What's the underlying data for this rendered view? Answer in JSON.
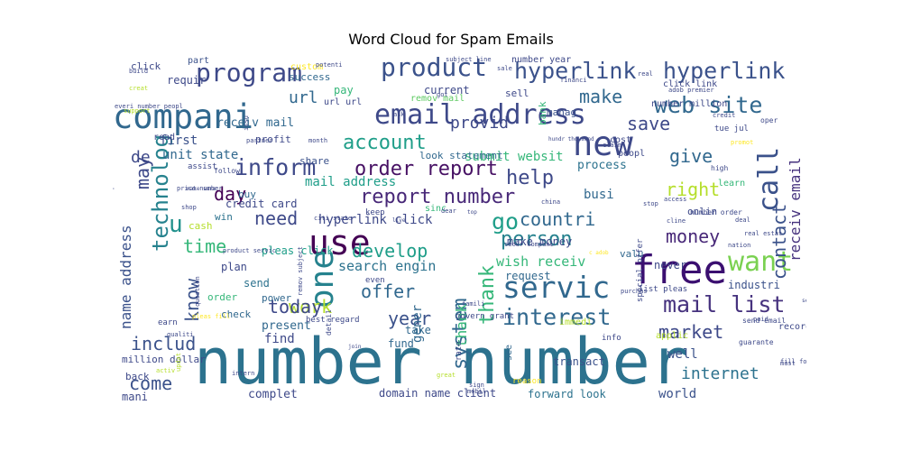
{
  "chart_data": {
    "type": "wordcloud",
    "title": "Word Cloud for Spam Emails",
    "words": [
      {
        "text": "number number",
        "weight": 70,
        "color": "#2c728e"
      },
      {
        "text": "free",
        "weight": 44,
        "color": "#3b0f70"
      },
      {
        "text": "use",
        "weight": 38,
        "color": "#440154"
      },
      {
        "text": "compani",
        "weight": 37,
        "color": "#31688e"
      },
      {
        "text": "new",
        "weight": 37,
        "color": "#3e4989"
      },
      {
        "text": "one",
        "weight": 36,
        "color": "#26828e"
      },
      {
        "text": "servic",
        "weight": 33,
        "color": "#31688e"
      },
      {
        "text": "email address",
        "weight": 30,
        "color": "#3e4989"
      },
      {
        "text": "want",
        "weight": 30,
        "color": "#7ad151"
      },
      {
        "text": "program",
        "weight": 28,
        "color": "#3e4989"
      },
      {
        "text": "product",
        "weight": 28,
        "color": "#3b528b"
      },
      {
        "text": "call",
        "weight": 30,
        "color": "#3b528b"
      },
      {
        "text": "hyperlink",
        "weight": 25,
        "color": "#3b528b"
      },
      {
        "text": "hyperlink",
        "weight": 25,
        "color": "#3b528b"
      },
      {
        "text": "web site",
        "weight": 25,
        "color": "#31688e"
      },
      {
        "text": "mail list",
        "weight": 25,
        "color": "#46327e"
      },
      {
        "text": "interest",
        "weight": 25,
        "color": "#31688e"
      },
      {
        "text": "inform",
        "weight": 25,
        "color": "#3e4989"
      },
      {
        "text": "technolog",
        "weight": 24,
        "color": "#26828e"
      },
      {
        "text": "go",
        "weight": 25,
        "color": "#1f9e89"
      },
      {
        "text": "u",
        "weight": 26,
        "color": "#21918c"
      },
      {
        "text": "account",
        "weight": 22,
        "color": "#1f9e89"
      },
      {
        "text": "report number",
        "weight": 22,
        "color": "#482878"
      },
      {
        "text": "order report",
        "weight": 22,
        "color": "#471164"
      },
      {
        "text": "help",
        "weight": 22,
        "color": "#3e4989"
      },
      {
        "text": "person",
        "weight": 22,
        "color": "#26828e"
      },
      {
        "text": "market",
        "weight": 20,
        "color": "#3e4989"
      },
      {
        "text": "system",
        "weight": 22,
        "color": "#31688e"
      },
      {
        "text": "thank",
        "weight": 22,
        "color": "#35b779"
      },
      {
        "text": "contact",
        "weight": 20,
        "color": "#3b528b"
      },
      {
        "text": "right",
        "weight": 20,
        "color": "#b5de2b"
      },
      {
        "text": "give",
        "weight": 20,
        "color": "#31688e"
      },
      {
        "text": "save",
        "weight": 20,
        "color": "#3e4989"
      },
      {
        "text": "make",
        "weight": 20,
        "color": "#31688e"
      },
      {
        "text": "money",
        "weight": 20,
        "color": "#482878"
      },
      {
        "text": "countri",
        "weight": 20,
        "color": "#31688e"
      },
      {
        "text": "develop",
        "weight": 20,
        "color": "#1f9e89"
      },
      {
        "text": "offer",
        "weight": 20,
        "color": "#31688e"
      },
      {
        "text": "work",
        "weight": 20,
        "color": "#b5de2b"
      },
      {
        "text": "today",
        "weight": 20,
        "color": "#3e4989"
      },
      {
        "text": "year",
        "weight": 20,
        "color": "#3b528b"
      },
      {
        "text": "includ",
        "weight": 20,
        "color": "#3b528b"
      },
      {
        "text": "internet",
        "weight": 18,
        "color": "#2c728e"
      },
      {
        "text": "time",
        "weight": 20,
        "color": "#35b779"
      },
      {
        "text": "need",
        "weight": 20,
        "color": "#3e4989"
      },
      {
        "text": "day",
        "weight": 20,
        "color": "#440154"
      },
      {
        "text": "may",
        "weight": 20,
        "color": "#3e4989"
      },
      {
        "text": "know",
        "weight": 20,
        "color": "#3b528b"
      },
      {
        "text": "name address",
        "weight": 16,
        "color": "#3b528b"
      },
      {
        "text": "come",
        "weight": 20,
        "color": "#3b528b"
      },
      {
        "text": "url",
        "weight": 18,
        "color": "#31688e"
      },
      {
        "text": "de",
        "weight": 18,
        "color": "#3e4989"
      },
      {
        "text": "provid",
        "weight": 18,
        "color": "#3e4989"
      },
      {
        "text": "receiv email",
        "weight": 16,
        "color": "#46327e"
      },
      {
        "text": "thank",
        "weight": 16,
        "color": "#35b779"
      },
      {
        "text": "gener",
        "weight": 14,
        "color": "#31688e"
      },
      {
        "text": "search engin",
        "weight": 15,
        "color": "#2c728e"
      },
      {
        "text": "wish receiv",
        "weight": 15,
        "color": "#35b779"
      },
      {
        "text": "hyperlink click",
        "weight": 14,
        "color": "#3e4989"
      },
      {
        "text": "mail address",
        "weight": 14,
        "color": "#1f9e89"
      },
      {
        "text": "receiv mail",
        "weight": 13,
        "color": "#31688e"
      },
      {
        "text": "submit websit",
        "weight": 14,
        "color": "#35b779"
      },
      {
        "text": "unit state",
        "weight": 14,
        "color": "#31688e"
      },
      {
        "text": "first",
        "weight": 14,
        "color": "#3b528b"
      },
      {
        "text": "busi",
        "weight": 14,
        "color": "#31688e"
      },
      {
        "text": "process",
        "weight": 13,
        "color": "#2c728e"
      },
      {
        "text": "present",
        "weight": 13,
        "color": "#31688e"
      },
      {
        "text": "well",
        "weight": 14,
        "color": "#3b528b"
      },
      {
        "text": "world",
        "weight": 14,
        "color": "#3b528b"
      },
      {
        "text": "complet",
        "weight": 13,
        "color": "#3e4989"
      },
      {
        "text": "forward look",
        "weight": 12,
        "color": "#2c728e"
      },
      {
        "text": "domain name client",
        "weight": 12,
        "color": "#3e4989"
      },
      {
        "text": "mani",
        "weight": 12,
        "color": "#3e4989"
      },
      {
        "text": "million dollar",
        "weight": 11,
        "color": "#3e4989"
      },
      {
        "text": "find",
        "weight": 14,
        "color": "#3e4989"
      },
      {
        "text": "transact",
        "weight": 12,
        "color": "#3b528b"
      },
      {
        "text": "fund",
        "weight": 12,
        "color": "#31688e"
      },
      {
        "text": "take",
        "weight": 12,
        "color": "#31688e"
      },
      {
        "text": "request",
        "weight": 12,
        "color": "#31688e"
      },
      {
        "text": "industri",
        "weight": 12,
        "color": "#3b528b"
      },
      {
        "text": "never",
        "weight": 12,
        "color": "#3e4989"
      },
      {
        "text": "valu",
        "weight": 11,
        "color": "#31688e"
      },
      {
        "text": "make money",
        "weight": 12,
        "color": "#3e4989"
      },
      {
        "text": "plan",
        "weight": 12,
        "color": "#3e4989"
      },
      {
        "text": "credit card",
        "weight": 12,
        "color": "#3e4989"
      },
      {
        "text": "pleas click",
        "weight": 12,
        "color": "#1f9e89"
      },
      {
        "text": "send",
        "weight": 12,
        "color": "#2c728e"
      },
      {
        "text": "order",
        "weight": 11,
        "color": "#35b779"
      },
      {
        "text": "check",
        "weight": 11,
        "color": "#31688e"
      },
      {
        "text": "power",
        "weight": 11,
        "color": "#31688e"
      },
      {
        "text": "win",
        "weight": 11,
        "color": "#2c728e"
      },
      {
        "text": "cash",
        "weight": 11,
        "color": "#b5de2b"
      },
      {
        "text": "buy",
        "weight": 11,
        "color": "#31688e"
      },
      {
        "text": "share",
        "weight": 11,
        "color": "#3b528b"
      },
      {
        "text": "look statement",
        "weight": 11,
        "color": "#31688e"
      },
      {
        "text": "profit",
        "weight": 11,
        "color": "#3e4989"
      },
      {
        "text": "pay",
        "weight": 12,
        "color": "#35b779"
      },
      {
        "text": "current",
        "weight": 12,
        "color": "#3e4989"
      },
      {
        "text": "sell",
        "weight": 11,
        "color": "#3e4989"
      },
      {
        "text": "custom",
        "weight": 10,
        "color": "#fde725"
      },
      {
        "text": "success",
        "weight": 11,
        "color": "#31688e"
      },
      {
        "text": "click",
        "weight": 11,
        "color": "#3e4989"
      },
      {
        "text": "requir",
        "weight": 12,
        "color": "#3e4989"
      },
      {
        "text": "part",
        "weight": 10,
        "color": "#3b528b"
      },
      {
        "text": "remov mail",
        "weight": 10,
        "color": "#5ec962"
      },
      {
        "text": "manag",
        "weight": 11,
        "color": "#3b528b"
      },
      {
        "text": "url url",
        "weight": 10,
        "color": "#3e4989"
      },
      {
        "text": "tue jul",
        "weight": 9,
        "color": "#3e4989"
      },
      {
        "text": "cost",
        "weight": 10,
        "color": "#3e4989"
      },
      {
        "text": "peopl",
        "weight": 10,
        "color": "#3e4989"
      },
      {
        "text": "learn",
        "weight": 10,
        "color": "#35b779"
      },
      {
        "text": "onlin",
        "weight": 11,
        "color": "#3e4989"
      },
      {
        "text": "bank",
        "weight": 11,
        "color": "#35b779"
      },
      {
        "text": "number year",
        "weight": 10,
        "color": "#3e4989"
      },
      {
        "text": "click link",
        "weight": 10,
        "color": "#3e4989"
      },
      {
        "text": "number million",
        "weight": 10,
        "color": "#3e4989"
      },
      {
        "text": "keep",
        "weight": 9,
        "color": "#3e4989"
      },
      {
        "text": "sinc",
        "weight": 10,
        "color": "#35b779"
      },
      {
        "text": "assist",
        "weight": 9,
        "color": "#3e4989"
      },
      {
        "text": "read",
        "weight": 10,
        "color": "#3e4989"
      },
      {
        "text": "info",
        "weight": 9,
        "color": "#3e4989"
      },
      {
        "text": "applic",
        "weight": 10,
        "color": "#b5de2b"
      },
      {
        "text": "record",
        "weight": 10,
        "color": "#3e4989"
      },
      {
        "text": "immedi",
        "weight": 10,
        "color": "#b5de2b"
      },
      {
        "text": "special offer",
        "weight": 9,
        "color": "#3e4989"
      },
      {
        "text": "list pleas",
        "weight": 9,
        "color": "#3e4989"
      },
      {
        "text": "reason",
        "weight": 9,
        "color": "#fde725"
      },
      {
        "text": "see",
        "weight": 10,
        "color": "#31688e"
      },
      {
        "text": "rate",
        "weight": 9,
        "color": "#3e4989"
      },
      {
        "text": "govern grant",
        "weight": 9,
        "color": "#3e4989"
      },
      {
        "text": "even",
        "weight": 9,
        "color": "#3e4989"
      },
      {
        "text": "back",
        "weight": 11,
        "color": "#3e4989"
      },
      {
        "text": "earn",
        "weight": 9,
        "color": "#3e4989"
      },
      {
        "text": "best regard",
        "weight": 9,
        "color": "#3e4989"
      },
      {
        "text": "detail",
        "weight": 8,
        "color": "#3e4989"
      },
      {
        "text": "send email",
        "weight": 8,
        "color": "#3e4989"
      },
      {
        "text": "paid",
        "weight": 7,
        "color": "#3e4989"
      },
      {
        "text": "guarante",
        "weight": 8,
        "color": "#3e4989"
      },
      {
        "text": "must",
        "weight": 7,
        "color": "#3e4989"
      },
      {
        "text": "fill form",
        "weight": 7,
        "color": "#3e4989"
      },
      {
        "text": "great",
        "weight": 7,
        "color": "#b5de2b"
      },
      {
        "text": "mobil",
        "weight": 7,
        "color": "#3e4989"
      },
      {
        "text": "sign",
        "weight": 7,
        "color": "#3e4989"
      },
      {
        "text": "activ",
        "weight": 7,
        "color": "#b5de2b"
      },
      {
        "text": "intern",
        "weight": 7,
        "color": "#3e4989"
      },
      {
        "text": "remov subject",
        "weight": 7,
        "color": "#3e4989"
      },
      {
        "text": "updat",
        "weight": 7,
        "color": "#b5de2b"
      },
      {
        "text": "question",
        "weight": 7,
        "color": "#3e4989"
      },
      {
        "text": "product servic",
        "weight": 7,
        "color": "#3e4989"
      },
      {
        "text": "price number",
        "weight": 7,
        "color": "#3e4989"
      },
      {
        "text": "public",
        "weight": 7,
        "color": "#3e4989"
      },
      {
        "text": "make sure",
        "weight": 6,
        "color": "#3e4989"
      },
      {
        "text": "follow",
        "weight": 8,
        "color": "#3e4989"
      },
      {
        "text": "month",
        "weight": 7,
        "color": "#3e4989"
      },
      {
        "text": "partner",
        "weight": 7,
        "color": "#3e4989"
      },
      {
        "text": "issu",
        "weight": 7,
        "color": "#3e4989"
      },
      {
        "text": "ask",
        "weight": 7,
        "color": "#3e4989"
      },
      {
        "text": "support",
        "weight": 7,
        "color": "#b5de2b"
      },
      {
        "text": "everi number peopl",
        "weight": 7,
        "color": "#3e4989"
      },
      {
        "text": "creat",
        "weight": 7,
        "color": "#b5de2b"
      },
      {
        "text": "build",
        "weight": 7,
        "color": "#3e4989"
      },
      {
        "text": "potenti",
        "weight": 7,
        "color": "#3e4989"
      },
      {
        "text": "subject line",
        "weight": 7,
        "color": "#3e4989"
      },
      {
        "text": "got",
        "weight": 7,
        "color": "#3e4989"
      },
      {
        "text": "sale",
        "weight": 7,
        "color": "#3e4989"
      },
      {
        "text": "financi",
        "weight": 7,
        "color": "#3e4989"
      },
      {
        "text": "real",
        "weight": 7,
        "color": "#3e4989"
      },
      {
        "text": "adob premier",
        "weight": 7,
        "color": "#3e4989"
      },
      {
        "text": "credit",
        "weight": 7,
        "color": "#3e4989"
      },
      {
        "text": "oper",
        "weight": 8,
        "color": "#3e4989"
      },
      {
        "text": "promot",
        "weight": 7,
        "color": "#fde725"
      },
      {
        "text": "high",
        "weight": 8,
        "color": "#3e4989"
      },
      {
        "text": "claim",
        "weight": 7,
        "color": "#3e4989"
      },
      {
        "text": "hundr thousand",
        "weight": 6,
        "color": "#3e4989"
      },
      {
        "text": "dear",
        "weight": 7,
        "color": "#3e4989"
      },
      {
        "text": "top",
        "weight": 6,
        "color": "#3e4989"
      },
      {
        "text": "citi state",
        "weight": 7,
        "color": "#3e4989"
      },
      {
        "text": "shop",
        "weight": 7,
        "color": "#3e4989"
      },
      {
        "text": "china",
        "weight": 7,
        "color": "#3e4989"
      },
      {
        "text": "stop",
        "weight": 7,
        "color": "#3e4989"
      },
      {
        "text": "access",
        "weight": 7,
        "color": "#3e4989"
      },
      {
        "text": "cline",
        "weight": 7,
        "color": "#3e4989"
      },
      {
        "text": "number order",
        "weight": 8,
        "color": "#3e4989"
      },
      {
        "text": "deal",
        "weight": 7,
        "color": "#3e4989"
      },
      {
        "text": "real estat",
        "weight": 7,
        "color": "#3e4989"
      },
      {
        "text": "nation",
        "weight": 7,
        "color": "#3e4989"
      },
      {
        "text": "secur compani",
        "weight": 7,
        "color": "#3e4989"
      },
      {
        "text": "purchas",
        "weight": 7,
        "color": "#3e4989"
      },
      {
        "text": "pleas fill",
        "weight": 7,
        "color": "#fde725"
      },
      {
        "text": "qualiti",
        "weight": 7,
        "color": "#3e4989"
      },
      {
        "text": "famili",
        "weight": 7,
        "color": "#3e4989"
      },
      {
        "text": "join",
        "weight": 6,
        "color": "#3e4989"
      },
      {
        "text": "live",
        "weight": 6,
        "color": "#3e4989"
      },
      {
        "text": "set",
        "weight": 6,
        "color": "#3e4989"
      },
      {
        "text": "c adob",
        "weight": 6,
        "color": "#fde725"
      }
    ]
  }
}
